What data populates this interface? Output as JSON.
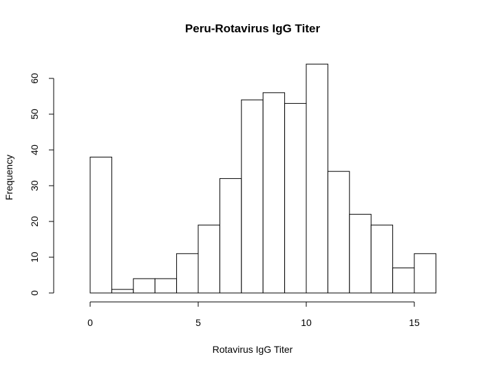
{
  "chart_data": {
    "type": "bar",
    "title": "Peru-Rotavirus IgG Titer",
    "xlabel": "Rotavirus IgG Titer",
    "ylabel": "Frequency",
    "bin_edges": [
      0,
      1,
      2,
      3,
      4,
      5,
      6,
      7,
      8,
      9,
      10,
      11,
      12,
      13,
      14,
      15,
      16
    ],
    "values": [
      38,
      1,
      4,
      4,
      11,
      19,
      32,
      54,
      56,
      53,
      64,
      34,
      22,
      19,
      7,
      11
    ],
    "xlim": [
      0,
      16
    ],
    "ylim": [
      0,
      64
    ],
    "x_ticks": [
      0,
      5,
      10,
      15
    ],
    "y_ticks": [
      0,
      10,
      20,
      30,
      40,
      50,
      60
    ],
    "grid": false,
    "colors": {
      "bar_fill": "#ffffff",
      "bar_stroke": "#000000"
    }
  }
}
